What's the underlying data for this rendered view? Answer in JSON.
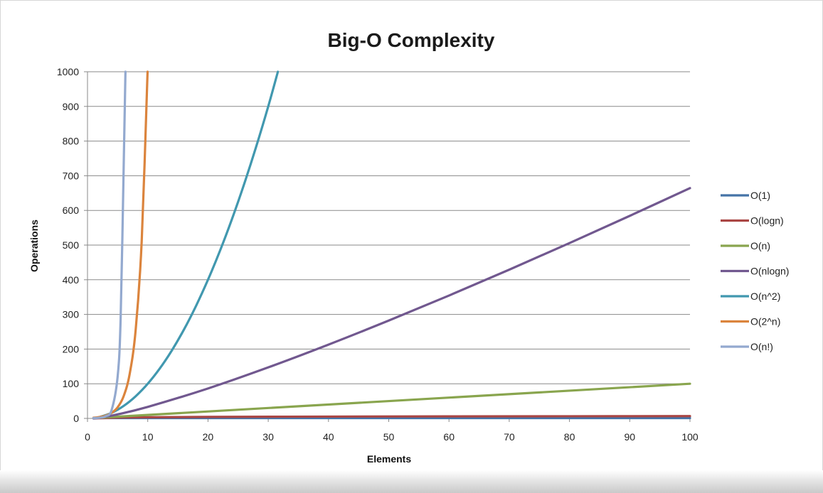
{
  "chart_data": {
    "type": "line",
    "title": "Big-O Complexity",
    "xlabel": "Elements",
    "ylabel": "Operations",
    "xlim": [
      0,
      100
    ],
    "ylim": [
      0,
      1000
    ],
    "xticks": [
      0,
      10,
      20,
      30,
      40,
      50,
      60,
      70,
      80,
      90,
      100
    ],
    "yticks": [
      0,
      100,
      200,
      300,
      400,
      500,
      600,
      700,
      800,
      900,
      1000
    ],
    "grid": "horizontal",
    "legend_position": "right",
    "series": [
      {
        "name": "O(1)",
        "color": "#4573a7",
        "x": [
          1,
          100
        ],
        "y": [
          1,
          1
        ]
      },
      {
        "name": "O(logn)",
        "color": "#aa4644",
        "x": [
          1,
          5,
          10,
          20,
          40,
          60,
          80,
          100
        ],
        "y": [
          0,
          2.3,
          3.3,
          4.3,
          5.3,
          5.9,
          6.3,
          6.6
        ]
      },
      {
        "name": "O(n)",
        "color": "#89a54e",
        "x": [
          1,
          100
        ],
        "y": [
          1,
          100
        ]
      },
      {
        "name": "O(nlogn)",
        "color": "#71588f",
        "x": [
          1,
          2,
          5,
          10,
          20,
          30,
          40,
          50,
          60,
          70,
          80,
          90,
          100
        ],
        "y": [
          0,
          2,
          11.6,
          33.2,
          86.4,
          147.2,
          212.9,
          282.2,
          354.4,
          429.1,
          505.8,
          584.3,
          664.4
        ]
      },
      {
        "name": "O(n^2)",
        "color": "#4198af",
        "x": [
          1,
          2,
          4,
          6,
          8,
          10,
          12,
          14,
          16,
          18,
          20,
          22,
          24,
          26,
          28,
          30,
          31.6
        ],
        "y": [
          1,
          4,
          16,
          36,
          64,
          100,
          144,
          196,
          256,
          324,
          400,
          484,
          576,
          676,
          784,
          900,
          1000
        ]
      },
      {
        "name": "O(2^n)",
        "color": "#db843d",
        "x": [
          1,
          2,
          3,
          4,
          5,
          6,
          7,
          8,
          9,
          9.97
        ],
        "y": [
          2,
          4,
          8,
          16,
          32,
          64,
          128,
          256,
          512,
          1000
        ]
      },
      {
        "name": "O(n!)",
        "color": "#93a9cf",
        "x": [
          1,
          2,
          3,
          4,
          5,
          5.5,
          6,
          6.3
        ],
        "y": [
          1,
          2,
          6,
          24,
          120,
          287,
          720,
          1000
        ]
      }
    ]
  }
}
